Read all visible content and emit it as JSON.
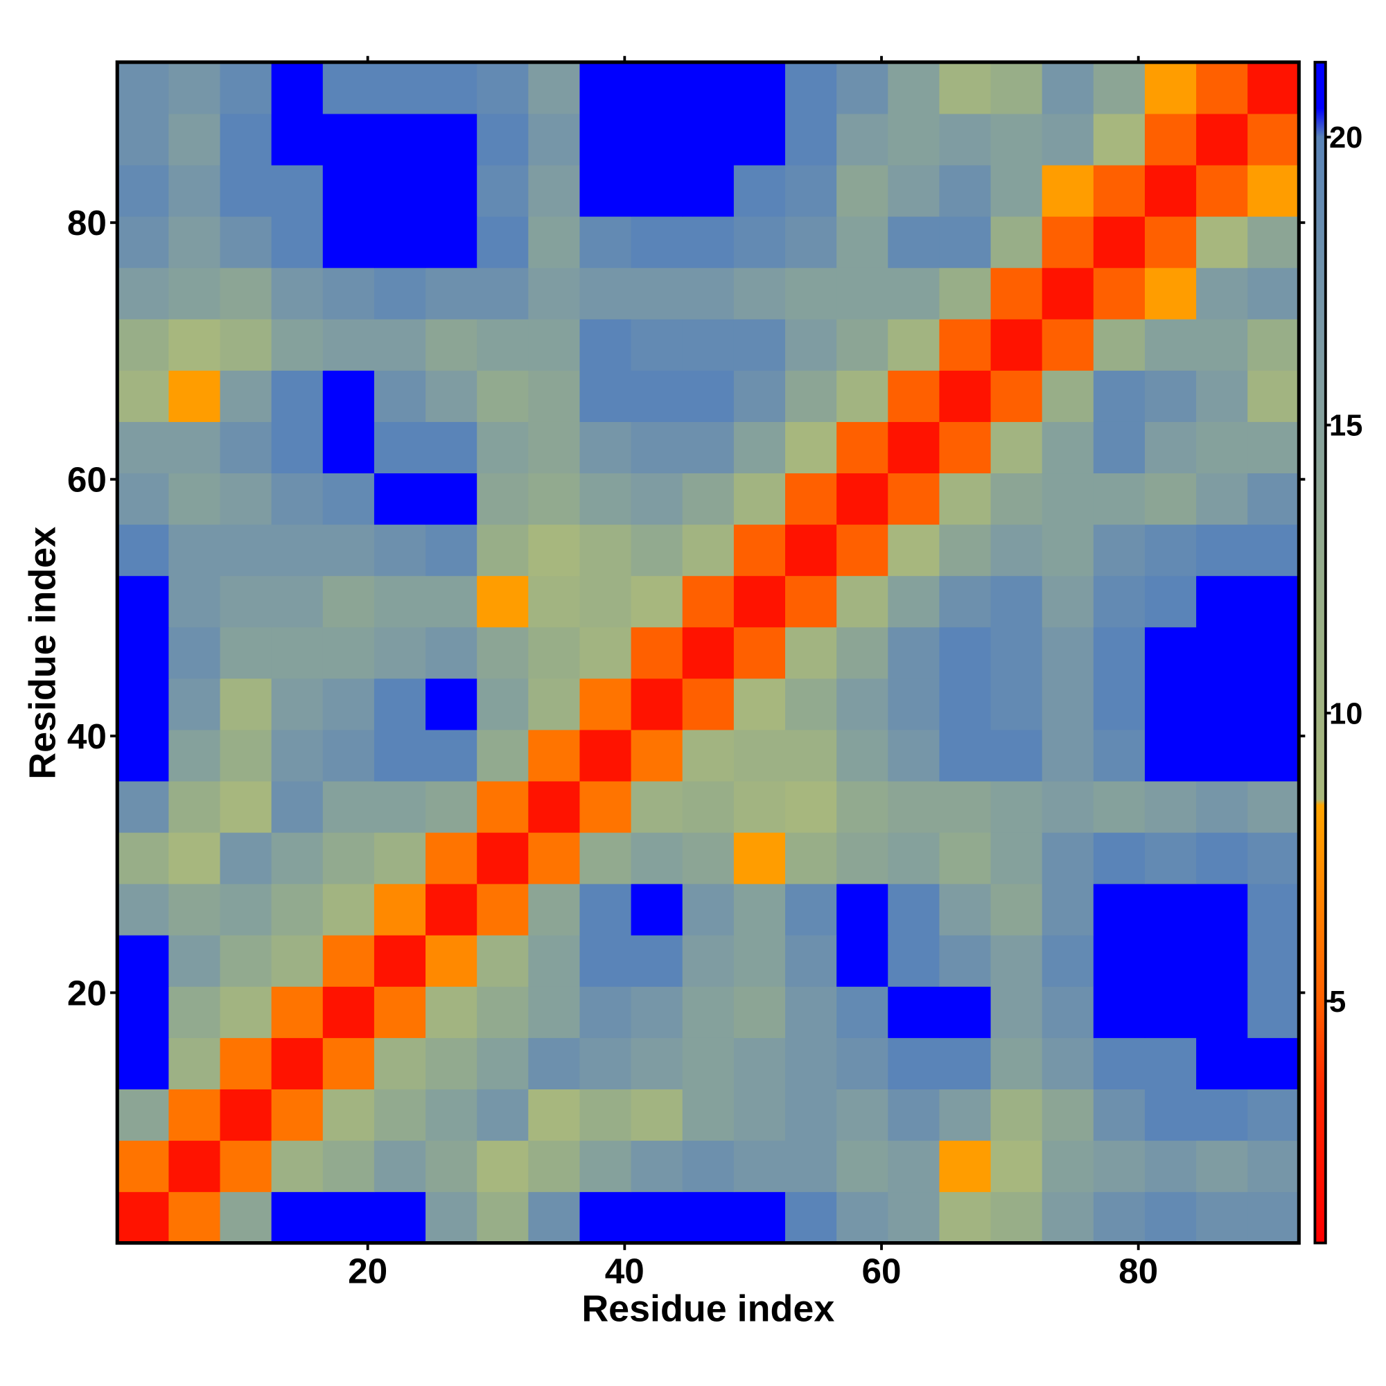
{
  "chart_data": {
    "type": "heatmap",
    "xlabel": "Residue index",
    "ylabel": "Residue index",
    "xlim": [
      0.5,
      92.5
    ],
    "ylim": [
      0.5,
      92.5
    ],
    "xticks": [
      20,
      40,
      60,
      80
    ],
    "yticks": [
      20,
      40,
      60,
      80
    ],
    "xbins": [
      0.5,
      4.5,
      8.5,
      12.5,
      16.5,
      20.5,
      24.5,
      28.5,
      32.5,
      36.5,
      40.5,
      44.5,
      48.5,
      52.5,
      56.5,
      60.5,
      64.5,
      68.5,
      72.5,
      76.5,
      80.5,
      84.5,
      88.5,
      92.5
    ],
    "ybins": [
      0.5,
      4.5,
      8.5,
      12.5,
      16.5,
      20.5,
      24.5,
      28.5,
      32.5,
      36.5,
      40.5,
      44.5,
      48.5,
      52.5,
      56.5,
      60.5,
      64.5,
      68.5,
      72.5,
      76.5,
      80.5,
      84.5,
      88.5,
      92.5
    ],
    "clim": [
      0.8,
      21.3
    ],
    "cticks": [
      5,
      10,
      15,
      20
    ],
    "colorscale": [
      [
        0.8,
        "#ff0000"
      ],
      [
        3.5,
        "#ff2a00"
      ],
      [
        5,
        "#ff6000"
      ],
      [
        8.4,
        "#ffa500"
      ],
      [
        8.5,
        "#a9b87c"
      ],
      [
        12,
        "#98ae88"
      ],
      [
        16,
        "#7f9ca2"
      ],
      [
        20,
        "#5a84b8"
      ],
      [
        20.5,
        "#0000ff"
      ],
      [
        21.3,
        "#0000ff"
      ]
    ],
    "values": [
      [
        2,
        6,
        14,
        21,
        21,
        21,
        16,
        12,
        18,
        21,
        21,
        21,
        21,
        20,
        17,
        16,
        10,
        12,
        16,
        18,
        19,
        18,
        18
      ],
      [
        6,
        2,
        6,
        11,
        13,
        16,
        14,
        9,
        12,
        15,
        17,
        18,
        17,
        17,
        15,
        16,
        8,
        9,
        15,
        16,
        17,
        16,
        17
      ],
      [
        14,
        6,
        2,
        6,
        10,
        13,
        15,
        17,
        9,
        12,
        10,
        15,
        16,
        17,
        16,
        18,
        16,
        11,
        14,
        18,
        20,
        20,
        19
      ],
      [
        21,
        11,
        6,
        2,
        6,
        11,
        13,
        15,
        18,
        17,
        16,
        15,
        16,
        17,
        18,
        20,
        20,
        15,
        17,
        20,
        20,
        21,
        21
      ],
      [
        21,
        13,
        10,
        6,
        2,
        6,
        10,
        13,
        15,
        18,
        17,
        15,
        14,
        17,
        19,
        21,
        21,
        16,
        18,
        21,
        21,
        21,
        20
      ],
      [
        21,
        16,
        13,
        11,
        6,
        2,
        7,
        11,
        15,
        20,
        20,
        16,
        15,
        18,
        21,
        20,
        18,
        16,
        19,
        21,
        21,
        21,
        20
      ],
      [
        16,
        14,
        15,
        13,
        10,
        7,
        2,
        6,
        14,
        20,
        21,
        17,
        15,
        19,
        21,
        20,
        16,
        14,
        18,
        21,
        21,
        21,
        20
      ],
      [
        12,
        9,
        17,
        15,
        13,
        11,
        6,
        2,
        6,
        13,
        15,
        14,
        8,
        12,
        14,
        15,
        13,
        15,
        18,
        20,
        19,
        20,
        19
      ],
      [
        18,
        12,
        9,
        18,
        15,
        15,
        14,
        6,
        2,
        6,
        11,
        12,
        10,
        9,
        13,
        14,
        14,
        15,
        16,
        15,
        16,
        17,
        16
      ],
      [
        21,
        15,
        12,
        17,
        18,
        20,
        20,
        13,
        6,
        2,
        6,
        10,
        11,
        11,
        15,
        17,
        20,
        20,
        17,
        19,
        21,
        21,
        21
      ],
      [
        21,
        17,
        10,
        16,
        17,
        20,
        21,
        15,
        11,
        6,
        2,
        5,
        9,
        13,
        16,
        18,
        20,
        19,
        17,
        20,
        21,
        21,
        21
      ],
      [
        21,
        18,
        15,
        15,
        15,
        16,
        17,
        14,
        12,
        10,
        5,
        2,
        5,
        10,
        14,
        18,
        20,
        19,
        17,
        20,
        21,
        21,
        21
      ],
      [
        21,
        17,
        16,
        16,
        14,
        15,
        15,
        8,
        10,
        11,
        9,
        5,
        2,
        5,
        10,
        15,
        18,
        19,
        16,
        19,
        20,
        21,
        21
      ],
      [
        20,
        17,
        17,
        17,
        17,
        18,
        19,
        12,
        9,
        11,
        13,
        10,
        5,
        2,
        5,
        9,
        14,
        16,
        15,
        18,
        19,
        20,
        20
      ],
      [
        17,
        15,
        16,
        18,
        19,
        21,
        21,
        14,
        13,
        15,
        16,
        14,
        10,
        5,
        2,
        5,
        10,
        14,
        15,
        15,
        14,
        16,
        18
      ],
      [
        16,
        16,
        18,
        20,
        21,
        20,
        20,
        15,
        14,
        17,
        18,
        18,
        15,
        9,
        5,
        2,
        5,
        10,
        15,
        19,
        16,
        15,
        15
      ],
      [
        10,
        8,
        16,
        20,
        21,
        18,
        16,
        13,
        14,
        20,
        20,
        20,
        18,
        14,
        10,
        5,
        2,
        5,
        12,
        19,
        18,
        16,
        10
      ],
      [
        12,
        9,
        11,
        15,
        16,
        16,
        14,
        15,
        15,
        20,
        19,
        19,
        19,
        16,
        14,
        10,
        5,
        2,
        5,
        12,
        15,
        15,
        12
      ],
      [
        16,
        15,
        14,
        17,
        18,
        19,
        18,
        18,
        16,
        17,
        17,
        17,
        16,
        15,
        15,
        15,
        12,
        5,
        2,
        5,
        8,
        16,
        17
      ],
      [
        18,
        16,
        18,
        20,
        21,
        21,
        21,
        20,
        15,
        19,
        20,
        20,
        19,
        18,
        15,
        19,
        19,
        12,
        5,
        2,
        5,
        9,
        14
      ],
      [
        19,
        17,
        20,
        20,
        21,
        21,
        21,
        19,
        16,
        21,
        21,
        21,
        20,
        19,
        14,
        16,
        18,
        15,
        8,
        5,
        2,
        5,
        8
      ],
      [
        18,
        16,
        20,
        21,
        21,
        21,
        21,
        20,
        17,
        21,
        21,
        21,
        21,
        20,
        16,
        15,
        16,
        15,
        16,
        9,
        5,
        2,
        5
      ],
      [
        18,
        17,
        19,
        21,
        20,
        20,
        20,
        19,
        16,
        21,
        21,
        21,
        21,
        20,
        18,
        15,
        10,
        12,
        17,
        14,
        8,
        5,
        2
      ]
    ]
  }
}
